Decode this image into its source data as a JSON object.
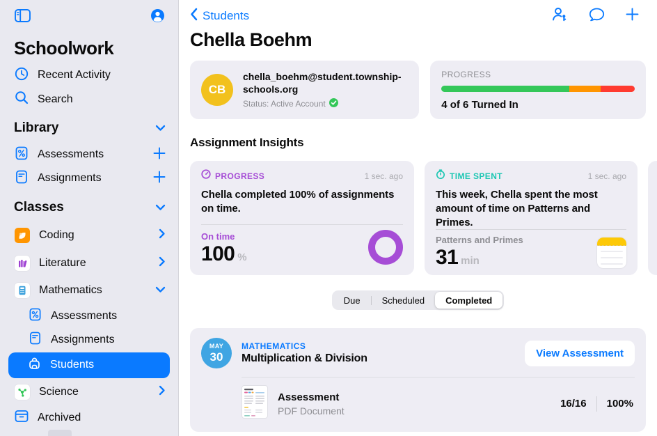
{
  "colors": {
    "accent_blue": "#0a7aff",
    "purple": "#a64dd6",
    "teal": "#1dc7b3",
    "avatar_yellow": "#f2c11d",
    "date_badge_blue": "#3fa5e3",
    "sidebar_bg": "#e9e9f0",
    "card_bg": "#eeedf4"
  },
  "sidebar": {
    "app_title": "Schoolwork",
    "top_items": [
      {
        "label": "Recent Activity"
      },
      {
        "label": "Search"
      }
    ],
    "library": {
      "header": "Library",
      "items": [
        {
          "label": "Assessments"
        },
        {
          "label": "Assignments"
        }
      ]
    },
    "classes": {
      "header": "Classes",
      "items": [
        {
          "label": "Coding"
        },
        {
          "label": "Literature"
        },
        {
          "label": "Mathematics"
        }
      ]
    },
    "math_children": [
      {
        "label": "Assessments"
      },
      {
        "label": "Assignments"
      },
      {
        "label": "Students",
        "selected": true
      }
    ],
    "science_label": "Science",
    "archived_label": "Archived"
  },
  "nav": {
    "back_label": "Students"
  },
  "student": {
    "name": "Chella Boehm",
    "avatar_initials": "CB",
    "email": "chella_boehm@student.township-schools.org",
    "status": "Status: Active Account"
  },
  "progress_card": {
    "label": "PROGRESS",
    "turned_in": "4 of 6 Turned In",
    "segments": [
      {
        "color": "#34c759",
        "pct": 66
      },
      {
        "color": "#ff9500",
        "pct": 16.5
      },
      {
        "color": "#ff3b30",
        "pct": 17.5
      }
    ]
  },
  "insights": {
    "heading": "Assignment Insights",
    "cards": [
      {
        "tag": "PROGRESS",
        "time": "1 sec. ago",
        "text": "Chella completed 100% of assignments on time.",
        "metric_label": "On time",
        "metric_value": "100",
        "metric_unit": "%"
      },
      {
        "tag": "TIME SPENT",
        "time": "1 sec. ago",
        "text": "This week, Chella spent the most amount of time on Patterns and Primes.",
        "metric_label": "Patterns and Primes",
        "metric_value": "31",
        "metric_unit": "min"
      }
    ]
  },
  "tabs": [
    {
      "label": "Due"
    },
    {
      "label": "Scheduled"
    },
    {
      "label": "Completed",
      "selected": true
    }
  ],
  "assignment": {
    "date_month": "MAY",
    "date_day": "30",
    "subject": "MATHEMATICS",
    "title": "Multiplication & Division",
    "button_label": "View Assessment",
    "doc": {
      "title": "Assessment",
      "subtitle": "PDF Document",
      "score": "16/16",
      "percent": "100%"
    }
  }
}
